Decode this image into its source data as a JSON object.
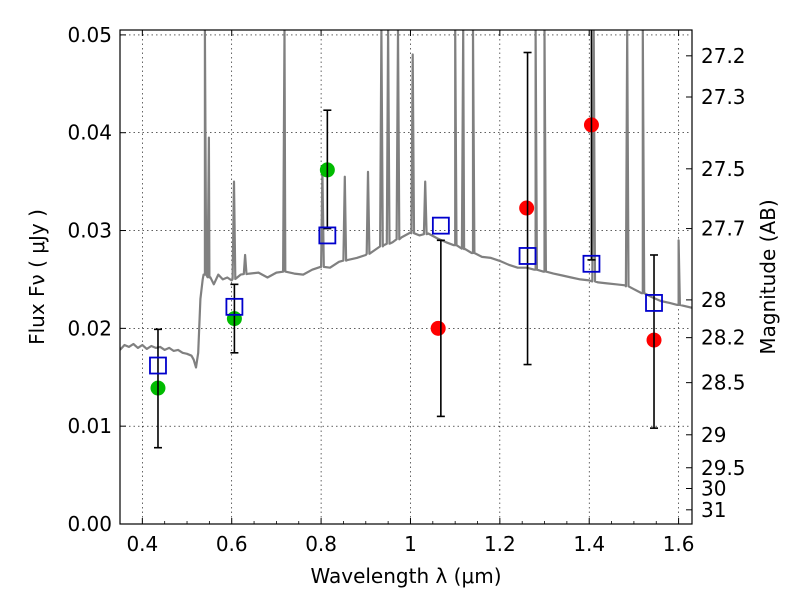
{
  "chart_data": {
    "type": "scatter",
    "xlabel": "Wavelength  λ (μm)",
    "ylabel": "Flux  Fν  ( μJy )",
    "ylabel_right": "Magnitude (AB)",
    "xlim": [
      0.35,
      1.63
    ],
    "ylim": [
      0.0,
      0.0505
    ],
    "x_ticks": [
      0.4,
      0.6,
      0.8,
      1.0,
      1.2,
      1.4,
      1.6
    ],
    "x_tick_labels": [
      "0.4",
      "0.6",
      "0.8",
      "1",
      "1.2",
      "1.4",
      "1.6"
    ],
    "y_ticks": [
      0.0,
      0.01,
      0.02,
      0.03,
      0.04,
      0.05
    ],
    "y_tick_labels": [
      "0.00",
      "0.01",
      "0.02",
      "0.03",
      "0.04",
      "0.05"
    ],
    "right_axis_ticks": [
      {
        "flux": 0.04786,
        "label": "27.2"
      },
      {
        "flux": 0.04365,
        "label": "27.3"
      },
      {
        "flux": 0.03631,
        "label": "27.5"
      },
      {
        "flux": 0.0302,
        "label": "27.7"
      },
      {
        "flux": 0.02291,
        "label": "28"
      },
      {
        "flux": 0.01905,
        "label": "28.2"
      },
      {
        "flux": 0.01445,
        "label": "28.5"
      },
      {
        "flux": 0.00912,
        "label": "29"
      },
      {
        "flux": 0.00575,
        "label": "29.5"
      },
      {
        "flux": 0.00363,
        "label": "30"
      },
      {
        "flux": 0.00145,
        "label": "31"
      }
    ],
    "grid": true,
    "colors": {
      "model": "#808080",
      "green_points": "#00bb00",
      "red_points": "#ff0000",
      "model_boxes": "#0000cc",
      "error_bars": "#000000"
    },
    "series": [
      {
        "type": "line",
        "points": [
          [
            0.35,
            0.0178
          ],
          [
            0.36,
            0.0183
          ],
          [
            0.37,
            0.0181
          ],
          [
            0.38,
            0.0184
          ],
          [
            0.39,
            0.018
          ],
          [
            0.4,
            0.0183
          ],
          [
            0.41,
            0.0179
          ],
          [
            0.42,
            0.0182
          ],
          [
            0.43,
            0.018
          ],
          [
            0.44,
            0.0181
          ],
          [
            0.45,
            0.0178
          ],
          [
            0.46,
            0.018
          ],
          [
            0.47,
            0.0177
          ],
          [
            0.48,
            0.0178
          ],
          [
            0.49,
            0.0175
          ],
          [
            0.5,
            0.0174
          ],
          [
            0.51,
            0.0172
          ],
          [
            0.515,
            0.0168
          ],
          [
            0.52,
            0.016
          ],
          [
            0.525,
            0.0175
          ],
          [
            0.53,
            0.023
          ],
          [
            0.535,
            0.025
          ],
          [
            0.54,
            0.0255
          ],
          [
            0.55,
            0.0252
          ],
          [
            0.56,
            0.0245
          ],
          [
            0.57,
            0.0255
          ],
          [
            0.58,
            0.025
          ],
          [
            0.59,
            0.0252
          ],
          [
            0.6,
            0.0249
          ],
          [
            0.62,
            0.0255
          ],
          [
            0.64,
            0.0256
          ],
          [
            0.66,
            0.0257
          ],
          [
            0.68,
            0.0252
          ],
          [
            0.7,
            0.0257
          ],
          [
            0.72,
            0.0258
          ],
          [
            0.74,
            0.0256
          ],
          [
            0.76,
            0.0255
          ],
          [
            0.78,
            0.026
          ],
          [
            0.8,
            0.0263
          ],
          [
            0.82,
            0.0262
          ],
          [
            0.84,
            0.0268
          ],
          [
            0.86,
            0.027
          ],
          [
            0.88,
            0.0272
          ],
          [
            0.9,
            0.0275
          ],
          [
            0.92,
            0.028
          ],
          [
            0.94,
            0.0285
          ],
          [
            0.96,
            0.0288
          ],
          [
            0.98,
            0.0293
          ],
          [
            1.0,
            0.0298
          ],
          [
            1.02,
            0.0295
          ],
          [
            1.04,
            0.0297
          ],
          [
            1.06,
            0.0292
          ],
          [
            1.08,
            0.0288
          ],
          [
            1.1,
            0.0285
          ],
          [
            1.12,
            0.0281
          ],
          [
            1.14,
            0.0277
          ],
          [
            1.16,
            0.0273
          ],
          [
            1.18,
            0.0272
          ],
          [
            1.2,
            0.0269
          ],
          [
            1.22,
            0.0265
          ],
          [
            1.24,
            0.0262
          ],
          [
            1.26,
            0.0262
          ],
          [
            1.28,
            0.026
          ],
          [
            1.3,
            0.0258
          ],
          [
            1.32,
            0.0256
          ],
          [
            1.34,
            0.0254
          ],
          [
            1.36,
            0.0252
          ],
          [
            1.38,
            0.025
          ],
          [
            1.4,
            0.0249
          ],
          [
            1.42,
            0.0247
          ],
          [
            1.44,
            0.0246
          ],
          [
            1.46,
            0.0245
          ],
          [
            1.48,
            0.0244
          ],
          [
            1.5,
            0.024
          ],
          [
            1.52,
            0.0236
          ],
          [
            1.54,
            0.0232
          ],
          [
            1.56,
            0.0228
          ],
          [
            1.58,
            0.0226
          ],
          [
            1.6,
            0.0224
          ],
          [
            1.63,
            0.0221
          ]
        ],
        "emission_lines": [
          {
            "x": 0.54,
            "peak": 0.0505
          },
          {
            "x": 0.549,
            "peak": 0.0395
          },
          {
            "x": 0.605,
            "peak": 0.035
          },
          {
            "x": 0.63,
            "peak": 0.0275
          },
          {
            "x": 0.718,
            "peak": 0.0505
          },
          {
            "x": 0.803,
            "peak": 0.036
          },
          {
            "x": 0.853,
            "peak": 0.0355
          },
          {
            "x": 0.905,
            "peak": 0.036
          },
          {
            "x": 0.935,
            "peak": 0.0505
          },
          {
            "x": 0.95,
            "peak": 0.0505
          },
          {
            "x": 0.972,
            "peak": 0.0505
          },
          {
            "x": 1.005,
            "peak": 0.048
          },
          {
            "x": 1.033,
            "peak": 0.035
          },
          {
            "x": 1.1,
            "peak": 0.0505
          },
          {
            "x": 1.118,
            "peak": 0.0505
          },
          {
            "x": 1.14,
            "peak": 0.0505
          },
          {
            "x": 1.28,
            "peak": 0.0505
          },
          {
            "x": 1.3,
            "peak": 0.0505
          },
          {
            "x": 1.41,
            "peak": 0.0505
          },
          {
            "x": 1.485,
            "peak": 0.0505
          },
          {
            "x": 1.52,
            "peak": 0.0505
          },
          {
            "x": 1.6,
            "peak": 0.029
          }
        ]
      },
      {
        "type": "scatter",
        "marker": "circle",
        "color": "green",
        "points": [
          {
            "x": 0.435,
            "y": 0.0139
          },
          {
            "x": 0.606,
            "y": 0.021
          },
          {
            "x": 0.814,
            "y": 0.0362
          }
        ]
      },
      {
        "type": "scatter",
        "marker": "circle",
        "color": "red",
        "points": [
          {
            "x": 1.062,
            "y": 0.02
          },
          {
            "x": 1.26,
            "y": 0.0323
          },
          {
            "x": 1.405,
            "y": 0.0408
          },
          {
            "x": 1.545,
            "y": 0.0188
          }
        ]
      },
      {
        "type": "errorbar",
        "points": [
          {
            "x": 0.435,
            "low": 0.0078,
            "high": 0.0199
          },
          {
            "x": 0.606,
            "low": 0.0175,
            "high": 0.0245
          },
          {
            "x": 0.814,
            "low": 0.0302,
            "high": 0.0423
          },
          {
            "x": 1.068,
            "low": 0.011,
            "high": 0.029
          },
          {
            "x": 1.262,
            "low": 0.0163,
            "high": 0.0482
          },
          {
            "x": 1.405,
            "low": 0.027,
            "high": 0.0505
          },
          {
            "x": 1.545,
            "low": 0.0098,
            "high": 0.0275
          }
        ]
      },
      {
        "type": "scatter",
        "marker": "square",
        "color": "blue",
        "points": [
          {
            "x": 0.435,
            "y": 0.0162
          },
          {
            "x": 0.606,
            "y": 0.0222
          },
          {
            "x": 0.814,
            "y": 0.0295
          },
          {
            "x": 1.068,
            "y": 0.0305
          },
          {
            "x": 1.262,
            "y": 0.0274
          },
          {
            "x": 1.405,
            "y": 0.0266
          },
          {
            "x": 1.545,
            "y": 0.0226
          }
        ]
      }
    ]
  }
}
